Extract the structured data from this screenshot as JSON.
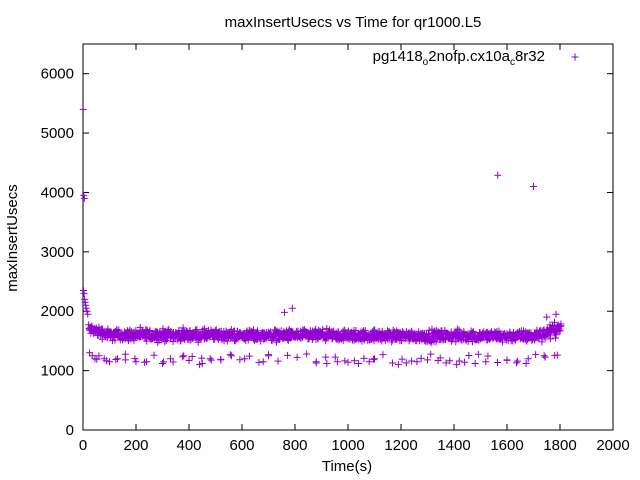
{
  "chart_data": {
    "type": "scatter",
    "title": "maxInsertUsecs vs Time for qr1000.L5",
    "xlabel": "Time(s)",
    "ylabel": "maxInsertUsecs",
    "xlim": [
      0,
      2000
    ],
    "ylim": [
      0,
      6500
    ],
    "xticks": [
      0,
      200,
      400,
      600,
      800,
      1000,
      1200,
      1400,
      1600,
      1800,
      2000
    ],
    "yticks": [
      0,
      1000,
      2000,
      3000,
      4000,
      5000,
      6000
    ],
    "grid": false,
    "legend_position": "top-right",
    "marker": "plus",
    "series": [
      {
        "name": "pg1418_o2nofp.cx10a_c8r32",
        "legend_parts": [
          {
            "text": "pg1418",
            "sub": false
          },
          {
            "text": "o",
            "sub": true
          },
          {
            "text": "2nofp.cx10a",
            "sub": false
          },
          {
            "text": "c",
            "sub": true
          },
          {
            "text": "8r32",
            "sub": false
          }
        ],
        "color": "#9400d3",
        "outliers": [
          [
            1,
            5400
          ],
          [
            3,
            3950
          ],
          [
            5,
            3900
          ],
          [
            2,
            2350
          ],
          [
            4,
            2300
          ],
          [
            6,
            2200
          ],
          [
            8,
            2150
          ],
          [
            10,
            2100
          ],
          [
            12,
            2050
          ],
          [
            15,
            2000
          ],
          [
            18,
            1950
          ],
          [
            1565,
            4290
          ],
          [
            1700,
            4100
          ],
          [
            790,
            2050
          ],
          [
            760,
            1980
          ],
          [
            1785,
            1950
          ],
          [
            1750,
            1900
          ],
          [
            25,
            1300
          ],
          [
            35,
            1250
          ],
          [
            45,
            1200
          ],
          [
            60,
            1250
          ],
          [
            80,
            1200
          ],
          [
            100,
            1150
          ],
          [
            130,
            1200
          ],
          [
            160,
            1180
          ],
          [
            200,
            1150
          ],
          [
            240,
            1150
          ],
          [
            300,
            1120
          ],
          [
            330,
            1200
          ],
          [
            380,
            1250
          ],
          [
            400,
            1170
          ],
          [
            440,
            1100
          ],
          [
            450,
            1120
          ],
          [
            480,
            1200
          ],
          [
            520,
            1180
          ],
          [
            560,
            1250
          ],
          [
            610,
            1200
          ],
          [
            680,
            1150
          ],
          [
            700,
            1250
          ],
          [
            880,
            1150
          ],
          [
            920,
            1120
          ],
          [
            960,
            1150
          ],
          [
            1000,
            1140
          ],
          [
            1040,
            1120
          ],
          [
            1080,
            1150
          ],
          [
            1100,
            1200
          ],
          [
            1190,
            1100
          ],
          [
            1220,
            1130
          ],
          [
            1260,
            1150
          ],
          [
            1300,
            1180
          ],
          [
            1340,
            1170
          ],
          [
            1370,
            1130
          ],
          [
            1410,
            1100
          ],
          [
            1440,
            1140
          ],
          [
            1480,
            1120
          ],
          [
            1520,
            1150
          ],
          [
            1600,
            1180
          ],
          [
            1640,
            1160
          ],
          [
            1680,
            1200
          ],
          [
            1740,
            1250
          ],
          [
            1790,
            1260
          ]
        ],
        "dense_band": {
          "x_range": [
            20,
            1800
          ],
          "step": 4,
          "segments": [
            {
              "x": [
                20,
                100
              ],
              "center_start": 1700,
              "center_end": 1600,
              "spread": 140
            },
            {
              "x": [
                100,
                1700
              ],
              "center_start": 1600,
              "center_end": 1580,
              "spread": 140
            },
            {
              "x": [
                1700,
                1800
              ],
              "center_start": 1580,
              "center_end": 1720,
              "spread": 160
            }
          ],
          "lower_band": {
            "center": 1200,
            "spread": 80,
            "every": 9
          }
        }
      }
    ]
  }
}
